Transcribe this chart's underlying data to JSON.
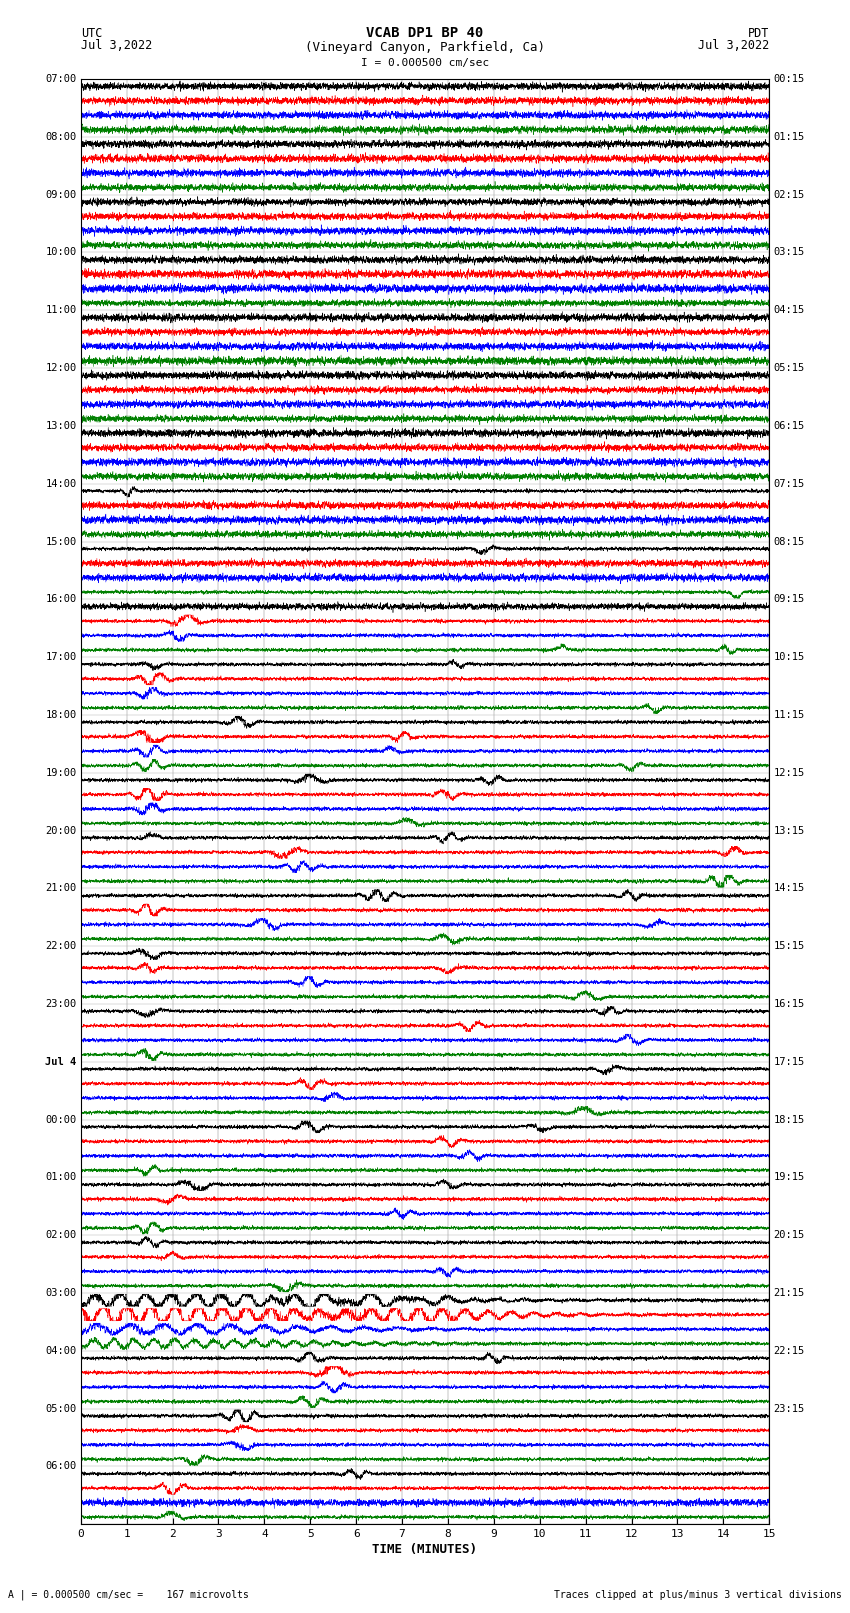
{
  "title_line1": "VCAB DP1 BP 40",
  "title_line2": "(Vineyard Canyon, Parkfield, Ca)",
  "scale_label": "I = 0.000500 cm/sec",
  "left_header": "UTC",
  "left_date": "Jul 3,2022",
  "right_header": "PDT",
  "right_date": "Jul 3,2022",
  "bottom_label": "TIME (MINUTES)",
  "bottom_note_left": "A | = 0.000500 cm/sec =    167 microvolts",
  "bottom_note_right": "Traces clipped at plus/minus 3 vertical divisions",
  "utc_labels": [
    "07:00",
    "08:00",
    "09:00",
    "10:00",
    "11:00",
    "12:00",
    "13:00",
    "14:00",
    "15:00",
    "16:00",
    "17:00",
    "18:00",
    "19:00",
    "20:00",
    "21:00",
    "22:00",
    "23:00",
    "Jul 4",
    "00:00",
    "01:00",
    "02:00",
    "03:00",
    "04:00",
    "05:00",
    "06:00"
  ],
  "pdt_labels": [
    "00:15",
    "01:15",
    "02:15",
    "03:15",
    "04:15",
    "05:15",
    "06:15",
    "07:15",
    "08:15",
    "09:15",
    "10:15",
    "11:15",
    "12:15",
    "13:15",
    "14:15",
    "15:15",
    "16:15",
    "17:15",
    "18:15",
    "19:15",
    "20:15",
    "21:15",
    "22:15",
    "23:15"
  ],
  "n_rows": 25,
  "n_channels": 4,
  "channel_colors": [
    "#000000",
    "#ff0000",
    "#0000ff",
    "#008000"
  ],
  "xlim": [
    0,
    15
  ],
  "xticks": [
    0,
    1,
    2,
    3,
    4,
    5,
    6,
    7,
    8,
    9,
    10,
    11,
    12,
    13,
    14,
    15
  ],
  "background_color": "#ffffff",
  "fig_width": 8.5,
  "fig_height": 16.13,
  "dpi": 100,
  "base_noise": 0.25,
  "trace_scale": 0.42
}
